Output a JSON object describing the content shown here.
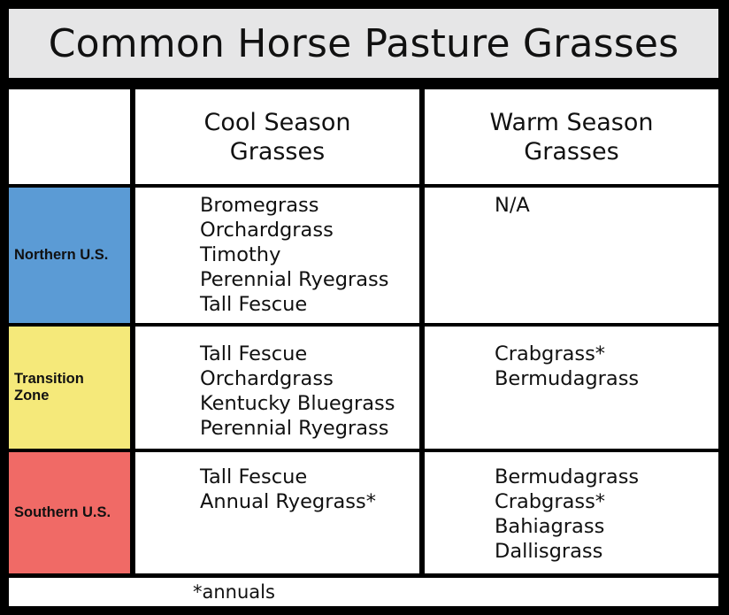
{
  "title": "Common Horse Pasture Grasses",
  "headers": {
    "col1": [
      "Cool Season",
      "Grasses"
    ],
    "col2": [
      "Warm Season",
      "Grasses"
    ]
  },
  "rows": [
    {
      "region_lines": [
        "Northern U.S."
      ],
      "color": "#5b9bd5",
      "cool": [
        "Bromegrass",
        "Orchardgrass",
        "Timothy",
        "Perennial Ryegrass",
        "Tall Fescue"
      ],
      "warm": [
        "N/A"
      ]
    },
    {
      "region_lines": [
        "Transition",
        "Zone"
      ],
      "color": "#f5e97a",
      "cool": [
        "Tall Fescue",
        "Orchardgrass",
        "Kentucky Bluegrass",
        "Perennial Ryegrass"
      ],
      "warm": [
        "Crabgrass*",
        "Bermudagrass"
      ]
    },
    {
      "region_lines": [
        "Southern U.S."
      ],
      "color": "#f06a66",
      "cool": [
        "Tall Fescue",
        "Annual Ryegrass*"
      ],
      "warm": [
        "Bermudagrass",
        "Crabgrass*",
        "Bahiagrass",
        "Dallisgrass"
      ]
    }
  ],
  "footnote": "*annuals"
}
